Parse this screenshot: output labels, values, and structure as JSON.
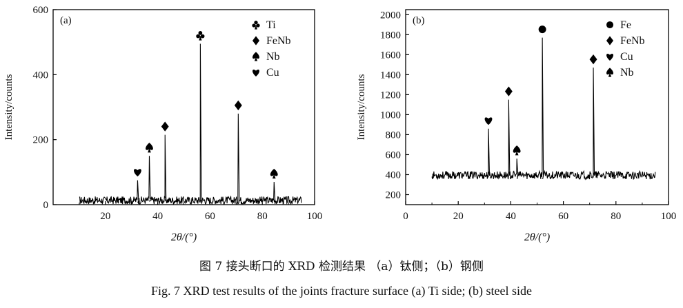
{
  "figure": {
    "caption_cn": "图 7   接头断口的 XRD 检测结果  （a）钛侧；（b）钢侧",
    "caption_en": "Fig. 7   XRD test results of the joints fracture surface   (a) Ti side; (b) steel side"
  },
  "chart_data": [
    {
      "type": "line",
      "panel_label": "(a)",
      "xlabel": "2θ/(°)",
      "ylabel": "Intensity/counts",
      "xlim": [
        0,
        100
      ],
      "ylim": [
        0,
        600
      ],
      "x_ticks": [
        20,
        40,
        60,
        80,
        100
      ],
      "y_ticks": [
        0,
        200,
        400,
        600
      ],
      "x_tick_labels": [
        "20",
        "40",
        "60",
        "80",
        "100"
      ],
      "y_tick_labels": [
        "0",
        "200",
        "400",
        "600"
      ],
      "grid": false,
      "legend_position": "top-right",
      "legend": [
        {
          "label": "Ti",
          "marker": "club"
        },
        {
          "label": "FeNb",
          "marker": "diamond"
        },
        {
          "label": "Nb",
          "marker": "spade"
        },
        {
          "label": "Cu",
          "marker": "heart"
        }
      ],
      "baseline": {
        "x_start": 10,
        "x_end": 95,
        "level": 12,
        "noise": 12
      },
      "peaks": [
        {
          "x": 32.3,
          "y": 75,
          "marker": "heart"
        },
        {
          "x": 36.8,
          "y": 150,
          "marker": "spade"
        },
        {
          "x": 42.8,
          "y": 215,
          "marker": "diamond"
        },
        {
          "x": 56.3,
          "y": 495,
          "marker": "club"
        },
        {
          "x": 70.8,
          "y": 280,
          "marker": "diamond"
        },
        {
          "x": 84.5,
          "y": 70,
          "marker": "spade"
        }
      ]
    },
    {
      "type": "line",
      "panel_label": "(b)",
      "xlabel": "2θ/(°)",
      "ylabel": "Intensity/counts",
      "xlim": [
        0,
        100
      ],
      "ylim": [
        100,
        2050
      ],
      "x_ticks": [
        0,
        20,
        40,
        60,
        80,
        100
      ],
      "y_ticks": [
        200,
        400,
        600,
        800,
        1000,
        1200,
        1400,
        1600,
        1800,
        2000
      ],
      "x_tick_labels": [
        "0",
        "20",
        "40",
        "60",
        "80",
        "100"
      ],
      "y_tick_labels": [
        "200",
        "400",
        "600",
        "800",
        "1000",
        "1200",
        "1400",
        "1600",
        "1800",
        "2000"
      ],
      "grid": false,
      "legend_position": "top-right",
      "legend": [
        {
          "label": "Fe",
          "marker": "circle"
        },
        {
          "label": "FeNb",
          "marker": "diamond"
        },
        {
          "label": "Cu",
          "marker": "heart"
        },
        {
          "label": "Nb",
          "marker": "spade"
        }
      ],
      "baseline": {
        "x_start": 10,
        "x_end": 95,
        "level": 390,
        "noise": 40
      },
      "peaks": [
        {
          "x": 31.5,
          "y": 860,
          "marker": "heart"
        },
        {
          "x": 39.2,
          "y": 1150,
          "marker": "diamond"
        },
        {
          "x": 42.3,
          "y": 560,
          "marker": "spade"
        },
        {
          "x": 52.0,
          "y": 1770,
          "marker": "circle"
        },
        {
          "x": 71.4,
          "y": 1470,
          "marker": "diamond"
        }
      ]
    }
  ]
}
